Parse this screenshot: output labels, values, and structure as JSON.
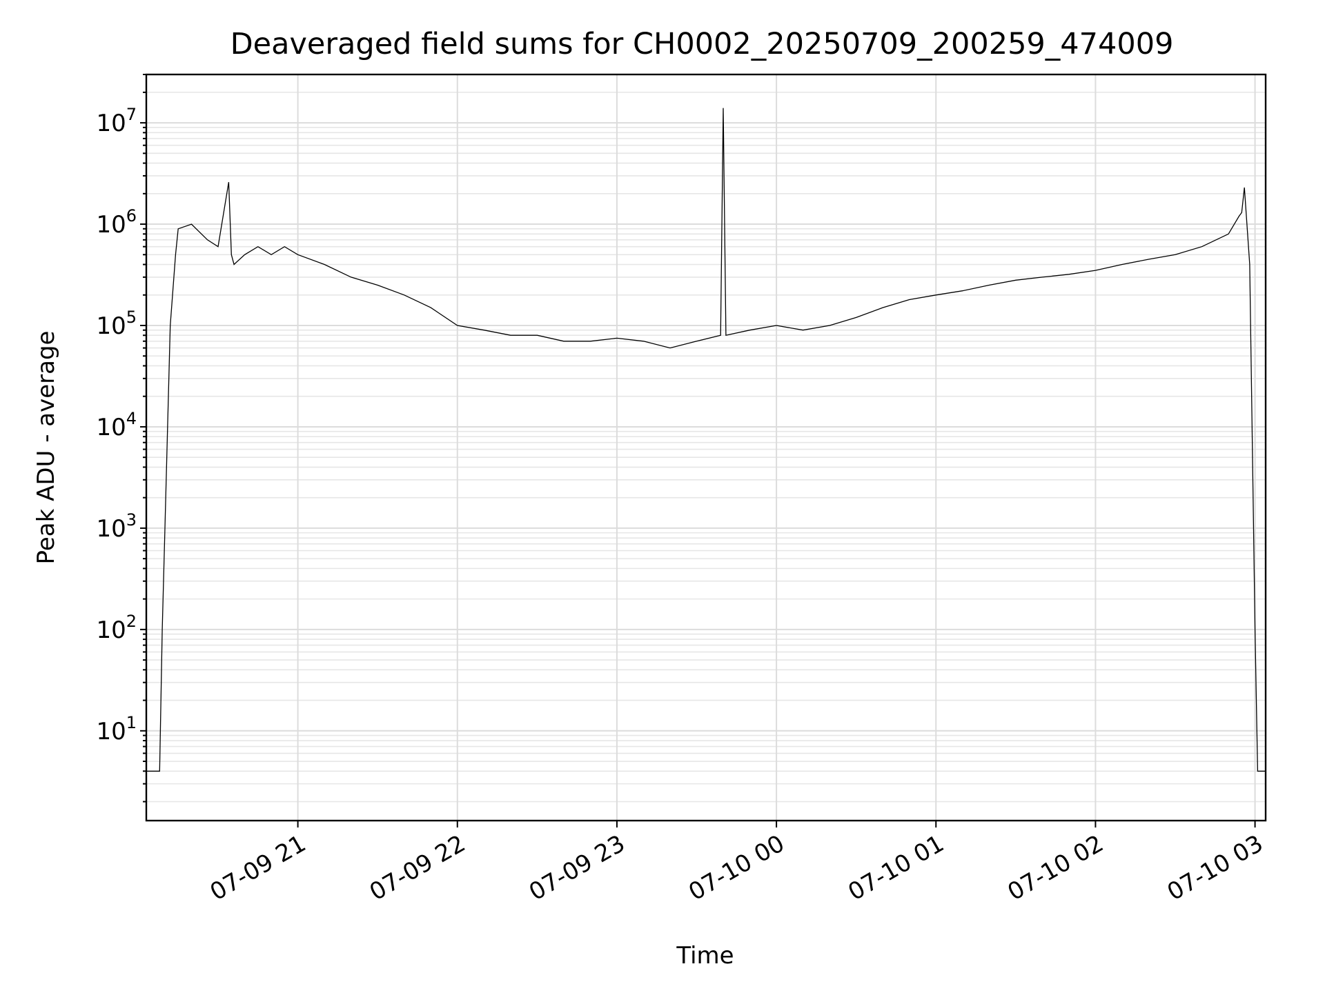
{
  "chart_data": {
    "type": "line",
    "title": "Deaveraged field sums for CH0002_20250709_200259_474009",
    "xlabel": "Time",
    "ylabel": "Peak ADU - average",
    "yscale": "log",
    "ylim": [
      1.3,
      30000000
    ],
    "xlim": [
      "2025-07-09 20:03",
      "2025-07-10 03:04"
    ],
    "grid": "major and minor, light gray",
    "line_color": "#000000",
    "x_ticks": [
      {
        "value": "2025-07-09 21:00",
        "label": "07-09 21"
      },
      {
        "value": "2025-07-09 22:00",
        "label": "07-09 22"
      },
      {
        "value": "2025-07-09 23:00",
        "label": "07-09 23"
      },
      {
        "value": "2025-07-10 00:00",
        "label": "07-10 00"
      },
      {
        "value": "2025-07-10 01:00",
        "label": "07-10 01"
      },
      {
        "value": "2025-07-10 02:00",
        "label": "07-10 02"
      },
      {
        "value": "2025-07-10 03:00",
        "label": "07-10 03"
      }
    ],
    "y_ticks": [
      {
        "value": 10,
        "base": "10",
        "exp": "1"
      },
      {
        "value": 100,
        "base": "10",
        "exp": "2"
      },
      {
        "value": 1000,
        "base": "10",
        "exp": "3"
      },
      {
        "value": 10000,
        "base": "10",
        "exp": "4"
      },
      {
        "value": 100000,
        "base": "10",
        "exp": "5"
      },
      {
        "value": 1000000,
        "base": "10",
        "exp": "6"
      },
      {
        "value": 10000000,
        "base": "10",
        "exp": "7"
      }
    ],
    "series": [
      {
        "x": [
          "2025-07-09 20:03",
          "2025-07-09 20:08",
          "2025-07-09 20:09",
          "2025-07-09 20:10",
          "2025-07-09 20:12",
          "2025-07-09 20:14",
          "2025-07-09 20:15",
          "2025-07-09 20:20",
          "2025-07-09 20:26",
          "2025-07-09 20:30",
          "2025-07-09 20:34",
          "2025-07-09 20:35",
          "2025-07-09 20:36",
          "2025-07-09 20:40",
          "2025-07-09 20:45",
          "2025-07-09 20:50",
          "2025-07-09 20:55",
          "2025-07-09 21:00",
          "2025-07-09 21:10",
          "2025-07-09 21:20",
          "2025-07-09 21:30",
          "2025-07-09 21:40",
          "2025-07-09 21:50",
          "2025-07-09 22:00",
          "2025-07-09 22:10",
          "2025-07-09 22:20",
          "2025-07-09 22:30",
          "2025-07-09 22:40",
          "2025-07-09 22:50",
          "2025-07-09 23:00",
          "2025-07-09 23:10",
          "2025-07-09 23:20",
          "2025-07-09 23:30",
          "2025-07-09 23:39",
          "2025-07-09 23:40",
          "2025-07-09 23:41",
          "2025-07-09 23:50",
          "2025-07-10 00:00",
          "2025-07-10 00:10",
          "2025-07-10 00:20",
          "2025-07-10 00:30",
          "2025-07-10 00:40",
          "2025-07-10 00:50",
          "2025-07-10 01:00",
          "2025-07-10 01:10",
          "2025-07-10 01:20",
          "2025-07-10 01:30",
          "2025-07-10 01:40",
          "2025-07-10 01:50",
          "2025-07-10 02:00",
          "2025-07-10 02:10",
          "2025-07-10 02:20",
          "2025-07-10 02:30",
          "2025-07-10 02:40",
          "2025-07-10 02:50",
          "2025-07-10 02:54",
          "2025-07-10 02:55",
          "2025-07-10 02:56",
          "2025-07-10 02:58",
          "2025-07-10 03:00",
          "2025-07-10 03:01",
          "2025-07-10 03:04"
        ],
        "y": [
          4,
          4,
          100,
          1000,
          100000,
          500000,
          900000,
          1000000,
          700000,
          600000,
          2600000,
          500000,
          400000,
          500000,
          600000,
          500000,
          600000,
          500000,
          400000,
          300000,
          250000,
          200000,
          150000,
          100000,
          90000,
          80000,
          80000,
          70000,
          70000,
          75000,
          70000,
          60000,
          70000,
          80000,
          14000000,
          80000,
          90000,
          100000,
          90000,
          100000,
          120000,
          150000,
          180000,
          200000,
          220000,
          250000,
          280000,
          300000,
          320000,
          350000,
          400000,
          450000,
          500000,
          600000,
          800000,
          1200000,
          1300000,
          2300000,
          400000,
          100,
          4,
          4
        ]
      }
    ]
  }
}
